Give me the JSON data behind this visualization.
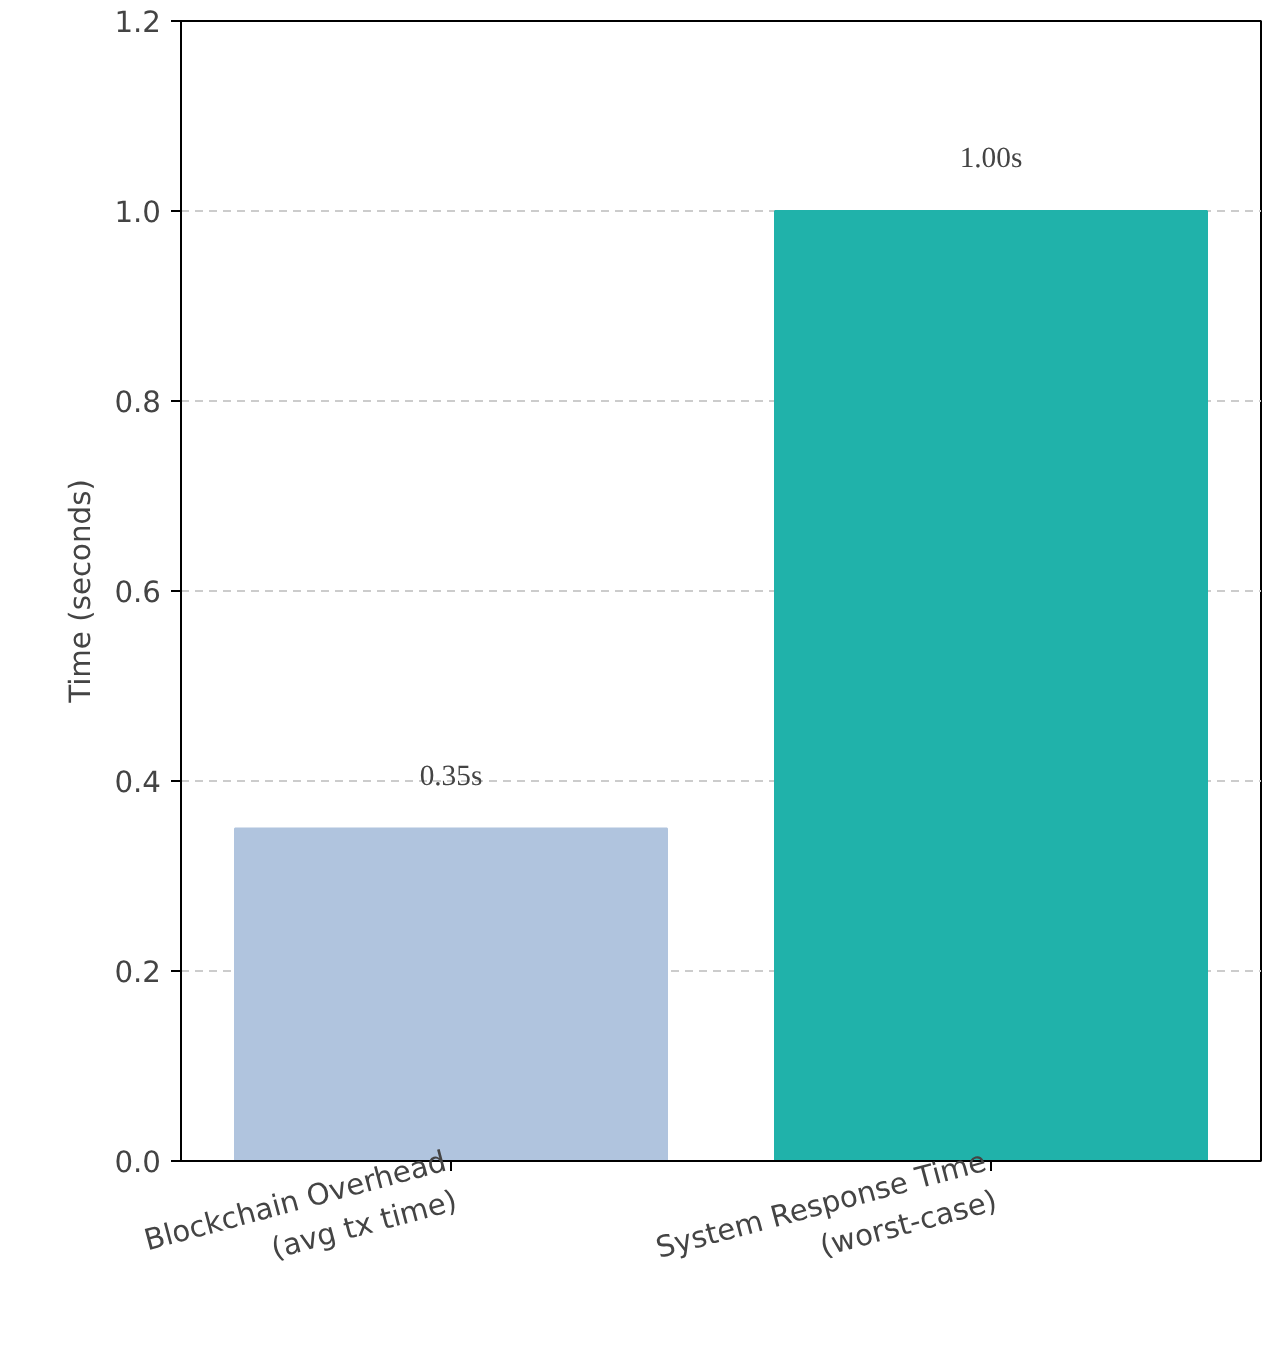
{
  "chart_data": {
    "type": "bar",
    "ylabel": "Time (seconds)",
    "categories": [
      "Blockchain Overhead\n(avg tx time)",
      "System Response Time\n(worst-case)"
    ],
    "values": [
      0.35,
      1.0
    ],
    "colors": [
      "#b0c4de",
      "#20b2aa"
    ],
    "value_labels": [
      "0.35s",
      "1.00s"
    ],
    "ylim": [
      0,
      1.2
    ],
    "yticks": [
      {
        "value": 0,
        "label": "0.0"
      },
      {
        "value": 0.2,
        "label": "0.2"
      },
      {
        "value": 0.4,
        "label": "0.4"
      },
      {
        "value": 0.6,
        "label": "0.6"
      },
      {
        "value": 0.8,
        "label": "0.8"
      },
      {
        "value": 1.0,
        "label": "1.0"
      },
      {
        "value": 1.2,
        "label": "1.2"
      }
    ],
    "grid": "y"
  }
}
